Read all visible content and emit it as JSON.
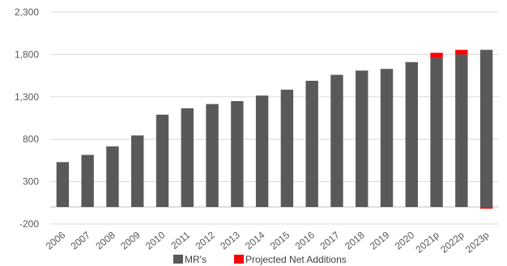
{
  "chart_data": {
    "type": "bar",
    "stacked": true,
    "categories": [
      "2006",
      "2007",
      "2008",
      "2009",
      "2010",
      "2011",
      "2012",
      "2013",
      "2014",
      "2015",
      "2016",
      "2017",
      "2018",
      "2019",
      "2020",
      "2021p",
      "2022p",
      "2023p"
    ],
    "series": [
      {
        "name": "MR's",
        "color": "#595959",
        "values": [
          530,
          615,
          715,
          845,
          1090,
          1165,
          1215,
          1250,
          1315,
          1385,
          1490,
          1560,
          1610,
          1630,
          1710,
          1760,
          1800,
          1855
        ]
      },
      {
        "name": "Projected Net Additions",
        "color": "#ff0000",
        "values": [
          0,
          0,
          0,
          0,
          0,
          0,
          0,
          0,
          0,
          0,
          0,
          0,
          0,
          0,
          0,
          60,
          55,
          -20
        ]
      }
    ],
    "yticks": [
      "-200",
      "300",
      "800",
      "1,300",
      "1,800",
      "2,300"
    ],
    "ylim": [
      -200,
      2300
    ],
    "grid": true,
    "legend_position": "bottom"
  }
}
